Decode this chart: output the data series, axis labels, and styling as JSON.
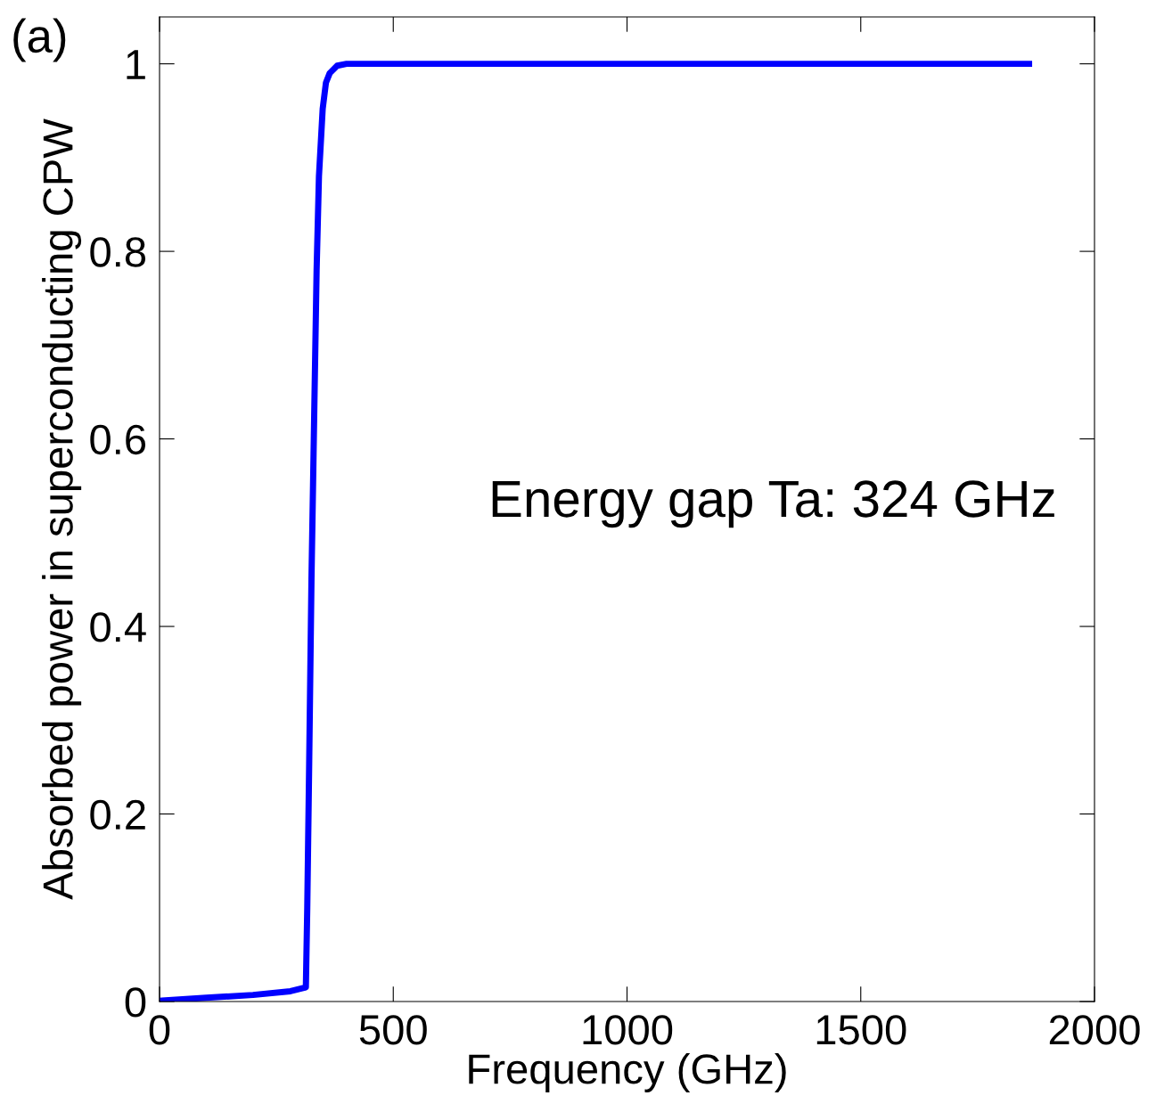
{
  "chart_data": {
    "type": "line",
    "xlabel": "Frequency (GHz)",
    "ylabel": "Absorbed power in superconducting CPW",
    "x": [
      5,
      100,
      200,
      280,
      313,
      316,
      320,
      325,
      330,
      336,
      341,
      349,
      356,
      364,
      380,
      400,
      1000,
      1860
    ],
    "series": [
      {
        "color": "#0000ff",
        "values": [
          0.001,
          0.004,
          0.007,
          0.011,
          0.015,
          0.1,
          0.25,
          0.45,
          0.6,
          0.78,
          0.88,
          0.952,
          0.98,
          0.99,
          0.998,
          1.0,
          1.0,
          1.0
        ]
      }
    ],
    "xlim": [
      0,
      2000
    ],
    "ylim": [
      0,
      1.05
    ],
    "xticks": [
      0,
      500,
      1000,
      1500,
      2000
    ],
    "yticks": [
      0,
      0.2,
      0.4,
      0.6,
      0.8,
      1
    ],
    "grid": false,
    "legend": false,
    "marker": "none",
    "line_style": "solid",
    "annotations": [
      "Energy gap Ta: 324 GHz",
      "(a)"
    ]
  }
}
